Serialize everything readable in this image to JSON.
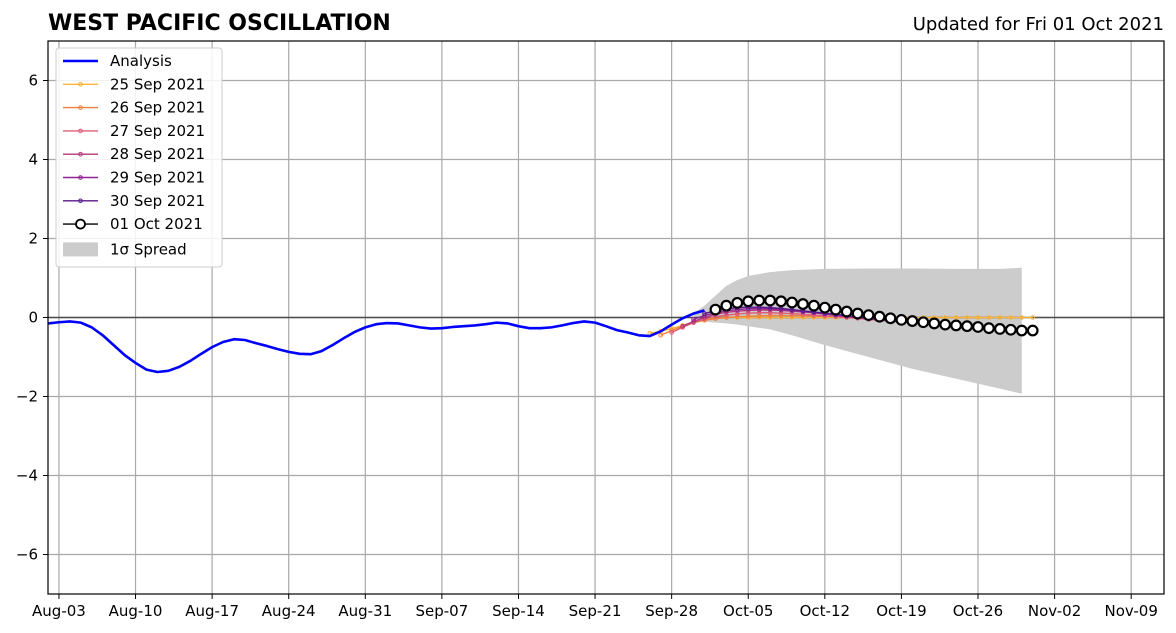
{
  "chart_data": {
    "type": "line",
    "title": "WEST PACIFIC OSCILLATION",
    "subtitle": "Updated for Fri 01 Oct 2021",
    "xlabel": "",
    "ylabel": "",
    "ylim": [
      -7,
      7
    ],
    "xlim": [
      "2021-08-02",
      "2021-11-12"
    ],
    "x_ticks": [
      "Aug-03",
      "Aug-10",
      "Aug-17",
      "Aug-24",
      "Aug-31",
      "Sep-07",
      "Sep-14",
      "Sep-21",
      "Sep-28",
      "Oct-05",
      "Oct-12",
      "Oct-19",
      "Oct-26",
      "Nov-02",
      "Nov-09"
    ],
    "y_ticks": [
      "−6",
      "−4",
      "−2",
      "0",
      "2",
      "4",
      "6"
    ],
    "y_tick_values": [
      -6,
      -4,
      -2,
      0,
      2,
      4,
      6
    ],
    "grid": true,
    "legend_position": "top-left",
    "legend_spread_label": "1σ Spread",
    "analysis": {
      "name": "Analysis",
      "color": "#0000ff",
      "x": [
        "2021-08-02",
        "2021-08-03",
        "2021-08-04",
        "2021-08-05",
        "2021-08-06",
        "2021-08-07",
        "2021-08-08",
        "2021-08-09",
        "2021-08-10",
        "2021-08-11",
        "2021-08-12",
        "2021-08-13",
        "2021-08-14",
        "2021-08-15",
        "2021-08-16",
        "2021-08-17",
        "2021-08-18",
        "2021-08-19",
        "2021-08-20",
        "2021-08-21",
        "2021-08-22",
        "2021-08-23",
        "2021-08-24",
        "2021-08-25",
        "2021-08-26",
        "2021-08-27",
        "2021-08-28",
        "2021-08-29",
        "2021-08-30",
        "2021-08-31",
        "2021-09-01",
        "2021-09-02",
        "2021-09-03",
        "2021-09-04",
        "2021-09-05",
        "2021-09-06",
        "2021-09-07",
        "2021-09-08",
        "2021-09-09",
        "2021-09-10",
        "2021-09-11",
        "2021-09-12",
        "2021-09-13",
        "2021-09-14",
        "2021-09-15",
        "2021-09-16",
        "2021-09-17",
        "2021-09-18",
        "2021-09-19",
        "2021-09-20",
        "2021-09-21",
        "2021-09-22",
        "2021-09-23",
        "2021-09-24",
        "2021-09-25",
        "2021-09-26",
        "2021-09-27",
        "2021-09-28",
        "2021-09-29",
        "2021-09-30",
        "2021-10-01"
      ],
      "values": [
        -0.15,
        -0.12,
        -0.1,
        -0.13,
        -0.25,
        -0.45,
        -0.7,
        -0.95,
        -1.15,
        -1.32,
        -1.38,
        -1.35,
        -1.25,
        -1.1,
        -0.92,
        -0.75,
        -0.62,
        -0.55,
        -0.57,
        -0.65,
        -0.72,
        -0.8,
        -0.87,
        -0.92,
        -0.93,
        -0.85,
        -0.7,
        -0.53,
        -0.37,
        -0.25,
        -0.17,
        -0.14,
        -0.15,
        -0.2,
        -0.25,
        -0.28,
        -0.27,
        -0.24,
        -0.22,
        -0.2,
        -0.17,
        -0.13,
        -0.15,
        -0.22,
        -0.27,
        -0.27,
        -0.25,
        -0.2,
        -0.14,
        -0.1,
        -0.13,
        -0.22,
        -0.32,
        -0.38,
        -0.45,
        -0.47,
        -0.35,
        -0.18,
        -0.02,
        0.1,
        0.18
      ]
    },
    "spread": {
      "label": "1σ Spread",
      "color": "#cccccc",
      "x": [
        "2021-09-30",
        "2021-10-01",
        "2021-10-02",
        "2021-10-03",
        "2021-10-04",
        "2021-10-05",
        "2021-10-07",
        "2021-10-09",
        "2021-10-12",
        "2021-10-16",
        "2021-10-20",
        "2021-10-24",
        "2021-10-28",
        "2021-10-30"
      ],
      "upper": [
        0.1,
        0.3,
        0.55,
        0.8,
        0.95,
        1.05,
        1.15,
        1.2,
        1.23,
        1.24,
        1.24,
        1.23,
        1.23,
        1.26
      ],
      "lower": [
        0.05,
        -0.1,
        -0.13,
        -0.15,
        -0.18,
        -0.22,
        -0.3,
        -0.45,
        -0.7,
        -1.0,
        -1.3,
        -1.55,
        -1.8,
        -1.93
      ]
    },
    "series": [
      {
        "name": "25 Sep 2021",
        "color": "#fbb33c",
        "start": "2021-09-26",
        "values": [
          -0.4,
          -0.35,
          -0.28,
          -0.2,
          -0.12,
          -0.06,
          -0.02,
          0.0,
          0.0,
          0.0,
          0.0,
          0.0,
          0.0,
          0.0,
          0.0,
          0.0,
          0.0,
          0.0,
          0.0,
          0.0,
          0.0,
          0.0,
          0.0,
          0.0,
          0.0,
          0.0,
          0.0,
          0.0,
          0.0,
          0.0,
          0.0,
          0.0,
          0.0,
          0.0,
          0.0,
          0.0
        ]
      },
      {
        "name": "26 Sep 2021",
        "color": "#f0803c",
        "start": "2021-09-27",
        "values": [
          -0.45,
          -0.33,
          -0.22,
          -0.13,
          -0.07,
          -0.03,
          0.0,
          0.02,
          0.03,
          0.04,
          0.05,
          0.05,
          0.05,
          0.05,
          0.04,
          0.03,
          0.02,
          0.0,
          -0.02,
          -0.04,
          -0.06,
          -0.08,
          -0.1,
          -0.12,
          -0.14,
          -0.16,
          -0.18,
          -0.2,
          -0.22,
          -0.24,
          -0.26,
          -0.27,
          -0.28,
          -0.29,
          -0.3
        ]
      },
      {
        "name": "27 Sep 2021",
        "color": "#dd5e76",
        "start": "2021-09-28",
        "values": [
          -0.38,
          -0.25,
          -0.13,
          -0.04,
          0.02,
          0.06,
          0.09,
          0.11,
          0.12,
          0.12,
          0.11,
          0.1,
          0.08,
          0.06,
          0.04,
          0.02,
          0.0,
          -0.02,
          -0.05,
          -0.07,
          -0.09,
          -0.11,
          -0.13,
          -0.15,
          -0.17,
          -0.19,
          -0.21,
          -0.23,
          -0.25,
          -0.27,
          -0.28,
          -0.29,
          -0.3,
          -0.31
        ]
      },
      {
        "name": "28 Sep 2021",
        "color": "#b5367a",
        "start": "2021-09-29",
        "values": [
          -0.22,
          -0.1,
          0.0,
          0.08,
          0.13,
          0.16,
          0.18,
          0.19,
          0.19,
          0.18,
          0.16,
          0.14,
          0.12,
          0.09,
          0.06,
          0.03,
          0.0,
          -0.03,
          -0.06,
          -0.09,
          -0.11,
          -0.13,
          -0.15,
          -0.17,
          -0.19,
          -0.21,
          -0.23,
          -0.25,
          -0.27,
          -0.29,
          -0.3,
          -0.31,
          -0.32
        ]
      },
      {
        "name": "29 Sep 2021",
        "color": "#8e2391",
        "start": "2021-09-30",
        "values": [
          -0.05,
          0.05,
          0.12,
          0.17,
          0.2,
          0.22,
          0.23,
          0.22,
          0.2,
          0.18,
          0.15,
          0.12,
          0.09,
          0.06,
          0.03,
          0.0,
          -0.03,
          -0.06,
          -0.09,
          -0.11,
          -0.13,
          -0.15,
          -0.17,
          -0.19,
          -0.21,
          -0.23,
          -0.25,
          -0.27,
          -0.29,
          -0.3,
          -0.31,
          -0.32
        ]
      },
      {
        "name": "30 Sep 2021",
        "color": "#551a8b",
        "start": "2021-10-01",
        "values": [
          0.1,
          0.17,
          0.22,
          0.25,
          0.26,
          0.26,
          0.25,
          0.23,
          0.2,
          0.17,
          0.14,
          0.11,
          0.08,
          0.05,
          0.02,
          -0.01,
          -0.04,
          -0.07,
          -0.1,
          -0.12,
          -0.14,
          -0.16,
          -0.18,
          -0.2,
          -0.22,
          -0.24,
          -0.26,
          -0.28,
          -0.3,
          -0.31,
          -0.32
        ]
      },
      {
        "name": "01 Oct 2021",
        "color": "#000000",
        "start": "2021-10-02",
        "values": [
          0.2,
          0.3,
          0.37,
          0.41,
          0.43,
          0.43,
          0.41,
          0.38,
          0.34,
          0.3,
          0.25,
          0.2,
          0.15,
          0.1,
          0.06,
          0.02,
          -0.02,
          -0.06,
          -0.09,
          -0.12,
          -0.15,
          -0.18,
          -0.2,
          -0.22,
          -0.24,
          -0.27,
          -0.29,
          -0.31,
          -0.33,
          -0.33
        ]
      }
    ]
  }
}
